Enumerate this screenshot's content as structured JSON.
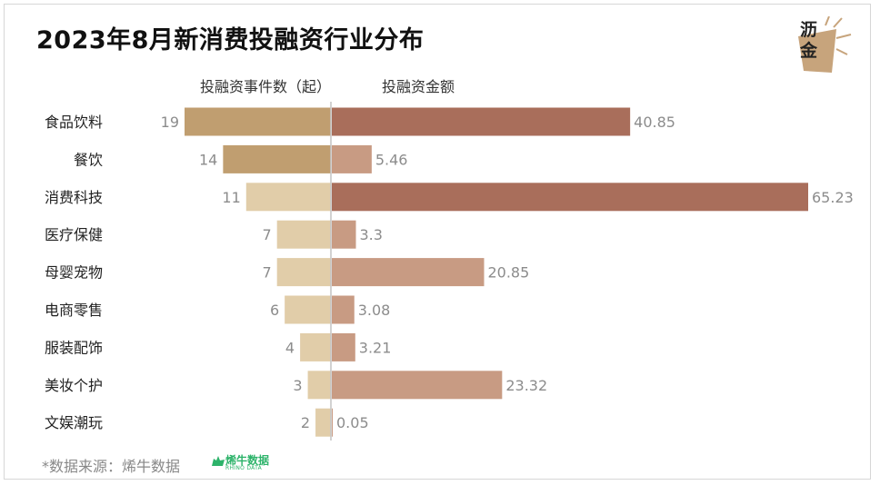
{
  "title": "2023年8月新消费投融资行业分布",
  "logo": {
    "text": "沥金"
  },
  "footer": {
    "source": "*数据来源：烯牛数据",
    "brand_cn": "烯牛数据",
    "brand_en": "RHINO DATA"
  },
  "colors": {
    "count_dark": "#c09e70",
    "count_light": "#e1cda9",
    "amount_dark": "#a96e5b",
    "amount_light": "#c89b83",
    "divider": "#c4c4c4"
  },
  "chart_data": {
    "type": "bar",
    "orientation": "horizontal-diverging",
    "categories": [
      "食品饮料",
      "餐饮",
      "消费科技",
      "医疗保健",
      "母婴宠物",
      "电商零售",
      "服装配饰",
      "美妆个护",
      "文娱潮玩"
    ],
    "series": [
      {
        "name": "投融资事件数（起）",
        "values": [
          19,
          14,
          11,
          7,
          7,
          6,
          4,
          3,
          2
        ]
      },
      {
        "name": "投融资金额",
        "values": [
          40.85,
          5.46,
          65.23,
          3.3,
          20.85,
          3.08,
          3.21,
          23.32,
          0.05
        ]
      }
    ],
    "value_labels_count": [
      "19",
      "14",
      "11",
      "7",
      "7",
      "6",
      "4",
      "3",
      "2"
    ],
    "value_labels_amount": [
      "40.85",
      "5.46",
      "65.23",
      "3.3",
      "20.85",
      "3.08",
      "3.21",
      "23.32",
      "0.05"
    ],
    "grid": false,
    "legend": "top"
  }
}
